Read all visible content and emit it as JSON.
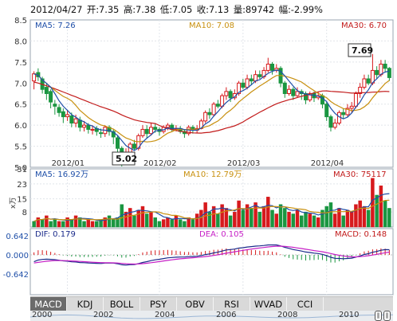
{
  "header": {
    "date": "2012/04/27",
    "open_label": "开:",
    "open": "7.35",
    "high_label": "高:",
    "high": "7.38",
    "low_label": "低:",
    "low": "7.05",
    "close_label": "收:",
    "close": "7.13",
    "volume_label": "量:",
    "volume": "89742",
    "change_label": "幅:",
    "change": "-2.99%"
  },
  "price_panel": {
    "ma5_label": "MA5: 7.26",
    "ma10_label": "MA10: 7.08",
    "ma30_label": "MA30: 6.70",
    "max_callout": "7.69",
    "min_callout": "5.02",
    "ylim": [
      5.0,
      8.5
    ],
    "y_ticks": [
      "8.5",
      "8.0",
      "7.5",
      "7.0",
      "6.5",
      "6.0",
      "5.5",
      "5.0"
    ],
    "x_ticks": [
      "2012/01",
      "2012/02",
      "2012/03",
      "2012/04"
    ]
  },
  "volume_panel": {
    "ma5_label": "MA5: 16.92万",
    "ma10_label": "MA10: 12.79万",
    "ma30_label": "MA30: 75117",
    "y_ticks": [
      "31",
      "23",
      "15",
      "8"
    ],
    "unit_label": "x万"
  },
  "macd_panel": {
    "dif_label": "DIF: 0.179",
    "dea_label": "DEA: 0.105",
    "macd_label": "MACD: 0.148",
    "y_ticks": [
      "0.642",
      "0.000",
      "-0.642"
    ]
  },
  "indicator_tabs": [
    "MACD",
    "KDJ",
    "BOLL",
    "PSY",
    "OBV",
    "RSI",
    "WVAD",
    "CCI"
  ],
  "active_tab": "MACD",
  "navigator": {
    "years": [
      "2000",
      "2002",
      "2004",
      "2006",
      "2008",
      "2010"
    ]
  },
  "colors": {
    "up": "#d7191c",
    "down": "#1a9641",
    "ma5": "#1f4fa8",
    "ma10": "#c8900f",
    "ma30": "#c21b1b",
    "dif": "#1a2a8a",
    "dea": "#c61fc6"
  },
  "chart_data": {
    "type": "candlestick",
    "price_ylim": [
      5.0,
      8.5
    ],
    "x_ticks": [
      "2012/01",
      "2012/02",
      "2012/03",
      "2012/04"
    ],
    "candles": [
      [
        7.05,
        7.22,
        7.28,
        6.85
      ],
      [
        7.25,
        7.15,
        7.35,
        7.05
      ],
      [
        7.1,
        6.85,
        7.15,
        6.75
      ],
      [
        6.9,
        6.75,
        6.98,
        6.6
      ],
      [
        6.8,
        6.55,
        6.85,
        6.4
      ],
      [
        6.5,
        6.45,
        6.6,
        6.25
      ],
      [
        6.42,
        6.3,
        6.5,
        6.2
      ],
      [
        6.32,
        6.2,
        6.4,
        6.05
      ],
      [
        6.2,
        6.25,
        6.35,
        6.1
      ],
      [
        6.22,
        6.05,
        6.3,
        5.95
      ],
      [
        6.05,
        6.15,
        6.25,
        5.95
      ],
      [
        6.12,
        5.95,
        6.2,
        5.85
      ],
      [
        5.95,
        6.0,
        6.1,
        5.85
      ],
      [
        6.0,
        5.9,
        6.05,
        5.8
      ],
      [
        5.88,
        5.9,
        6.0,
        5.78
      ],
      [
        5.92,
        5.85,
        5.98,
        5.75
      ],
      [
        5.82,
        5.8,
        5.92,
        5.7
      ],
      [
        5.8,
        5.95,
        6.0,
        5.72
      ],
      [
        5.95,
        5.85,
        6.0,
        5.75
      ],
      [
        5.85,
        5.72,
        5.9,
        5.55
      ],
      [
        5.7,
        5.45,
        5.75,
        5.3
      ],
      [
        5.45,
        5.2,
        5.5,
        5.02
      ],
      [
        5.2,
        5.35,
        5.45,
        5.1
      ],
      [
        5.32,
        5.55,
        5.6,
        5.25
      ],
      [
        5.55,
        5.45,
        5.65,
        5.4
      ],
      [
        5.45,
        5.75,
        5.8,
        5.4
      ],
      [
        5.75,
        5.9,
        6.0,
        5.7
      ],
      [
        5.9,
        5.8,
        6.0,
        5.7
      ],
      [
        5.8,
        5.95,
        6.05,
        5.75
      ],
      [
        5.95,
        5.9,
        6.05,
        5.82
      ],
      [
        5.9,
        5.85,
        5.95,
        5.75
      ],
      [
        5.85,
        5.95,
        6.0,
        5.8
      ],
      [
        5.95,
        6.0,
        6.05,
        5.88
      ],
      [
        6.0,
        5.9,
        6.05,
        5.85
      ],
      [
        5.9,
        5.92,
        6.0,
        5.85
      ],
      [
        5.92,
        5.85,
        5.98,
        5.8
      ],
      [
        5.85,
        5.8,
        5.9,
        5.7
      ],
      [
        5.8,
        5.95,
        6.0,
        5.75
      ],
      [
        5.95,
        5.88,
        6.0,
        5.8
      ],
      [
        5.88,
        5.92,
        6.0,
        5.82
      ],
      [
        5.92,
        6.1,
        6.15,
        5.9
      ],
      [
        6.1,
        6.3,
        6.35,
        6.05
      ],
      [
        6.3,
        6.25,
        6.4,
        6.15
      ],
      [
        6.25,
        6.5,
        6.55,
        6.2
      ],
      [
        6.5,
        6.45,
        6.6,
        6.4
      ],
      [
        6.45,
        6.7,
        6.75,
        6.4
      ],
      [
        6.7,
        6.8,
        6.9,
        6.6
      ],
      [
        6.8,
        6.65,
        6.85,
        6.55
      ],
      [
        6.65,
        6.75,
        6.85,
        6.6
      ],
      [
        6.75,
        7.0,
        7.05,
        6.7
      ],
      [
        7.0,
        6.9,
        7.1,
        6.85
      ],
      [
        6.9,
        7.1,
        7.2,
        6.85
      ],
      [
        7.1,
        7.05,
        7.2,
        6.95
      ],
      [
        7.05,
        7.2,
        7.3,
        7.0
      ],
      [
        7.2,
        7.15,
        7.3,
        7.1
      ],
      [
        7.15,
        7.3,
        7.38,
        7.1
      ],
      [
        7.3,
        7.45,
        7.6,
        7.25
      ],
      [
        7.45,
        7.3,
        7.5,
        7.2
      ],
      [
        7.3,
        7.35,
        7.45,
        7.25
      ],
      [
        7.35,
        7.0,
        7.4,
        6.9
      ],
      [
        7.0,
        6.75,
        7.05,
        6.65
      ],
      [
        6.75,
        6.85,
        6.95,
        6.7
      ],
      [
        6.85,
        6.7,
        6.9,
        6.6
      ],
      [
        6.7,
        6.8,
        6.9,
        6.65
      ],
      [
        6.8,
        6.75,
        6.85,
        6.6
      ],
      [
        6.75,
        6.6,
        6.8,
        6.5
      ],
      [
        6.6,
        6.75,
        6.8,
        6.55
      ],
      [
        6.75,
        6.65,
        6.8,
        6.55
      ],
      [
        6.65,
        6.7,
        6.8,
        6.6
      ],
      [
        6.7,
        6.5,
        6.75,
        6.4
      ],
      [
        6.5,
        6.2,
        6.55,
        6.1
      ],
      [
        6.2,
        5.95,
        6.25,
        5.85
      ],
      [
        5.95,
        6.05,
        6.15,
        5.9
      ],
      [
        6.05,
        6.3,
        6.35,
        6.0
      ],
      [
        6.3,
        6.25,
        6.4,
        6.15
      ],
      [
        6.25,
        6.4,
        6.5,
        6.2
      ],
      [
        6.4,
        6.45,
        6.55,
        6.3
      ],
      [
        6.45,
        6.75,
        6.8,
        6.4
      ],
      [
        6.75,
        6.9,
        7.0,
        6.65
      ],
      [
        6.9,
        7.1,
        7.2,
        6.85
      ],
      [
        7.1,
        7.0,
        7.2,
        6.95
      ],
      [
        7.0,
        7.3,
        7.69,
        6.95
      ],
      [
        7.3,
        7.2,
        7.4,
        7.1
      ],
      [
        7.2,
        7.45,
        7.55,
        7.15
      ],
      [
        7.45,
        7.35,
        7.55,
        7.25
      ],
      [
        7.35,
        7.13,
        7.38,
        7.05
      ]
    ],
    "volume": [
      [
        3,
        0
      ],
      [
        5,
        1
      ],
      [
        4,
        0
      ],
      [
        6,
        1
      ],
      [
        3,
        0
      ],
      [
        4,
        0
      ],
      [
        3,
        1
      ],
      [
        3,
        0
      ],
      [
        5,
        1
      ],
      [
        4,
        0
      ],
      [
        6,
        1
      ],
      [
        5,
        0
      ],
      [
        3,
        0
      ],
      [
        4,
        1
      ],
      [
        3,
        1
      ],
      [
        3,
        0
      ],
      [
        4,
        0
      ],
      [
        5,
        1
      ],
      [
        6,
        0
      ],
      [
        4,
        0
      ],
      [
        5,
        0
      ],
      [
        12,
        0
      ],
      [
        8,
        1
      ],
      [
        10,
        1
      ],
      [
        6,
        0
      ],
      [
        9,
        1
      ],
      [
        11,
        1
      ],
      [
        7,
        0
      ],
      [
        8,
        1
      ],
      [
        5,
        0
      ],
      [
        3,
        0
      ],
      [
        4,
        1
      ],
      [
        5,
        1
      ],
      [
        4,
        0
      ],
      [
        6,
        1
      ],
      [
        4,
        0
      ],
      [
        3,
        0
      ],
      [
        5,
        1
      ],
      [
        4,
        0
      ],
      [
        7,
        1
      ],
      [
        9,
        1
      ],
      [
        13,
        1
      ],
      [
        8,
        0
      ],
      [
        11,
        1
      ],
      [
        7,
        0
      ],
      [
        12,
        1
      ],
      [
        10,
        1
      ],
      [
        6,
        0
      ],
      [
        8,
        1
      ],
      [
        14,
        1
      ],
      [
        9,
        0
      ],
      [
        12,
        1
      ],
      [
        10,
        0
      ],
      [
        13,
        1
      ],
      [
        8,
        0
      ],
      [
        11,
        1
      ],
      [
        16,
        1
      ],
      [
        9,
        0
      ],
      [
        7,
        1
      ],
      [
        12,
        0
      ],
      [
        10,
        0
      ],
      [
        8,
        1
      ],
      [
        7,
        0
      ],
      [
        9,
        1
      ],
      [
        6,
        0
      ],
      [
        8,
        0
      ],
      [
        7,
        1
      ],
      [
        6,
        0
      ],
      [
        5,
        1
      ],
      [
        9,
        0
      ],
      [
        11,
        0
      ],
      [
        13,
        0
      ],
      [
        7,
        1
      ],
      [
        10,
        1
      ],
      [
        6,
        0
      ],
      [
        9,
        1
      ],
      [
        8,
        1
      ],
      [
        12,
        1
      ],
      [
        14,
        1
      ],
      [
        11,
        1
      ],
      [
        9,
        0
      ],
      [
        26,
        1
      ],
      [
        17,
        0
      ],
      [
        22,
        1
      ],
      [
        14,
        0
      ],
      [
        10,
        0
      ]
    ],
    "volume_ylim": [
      0,
      31
    ]
  }
}
